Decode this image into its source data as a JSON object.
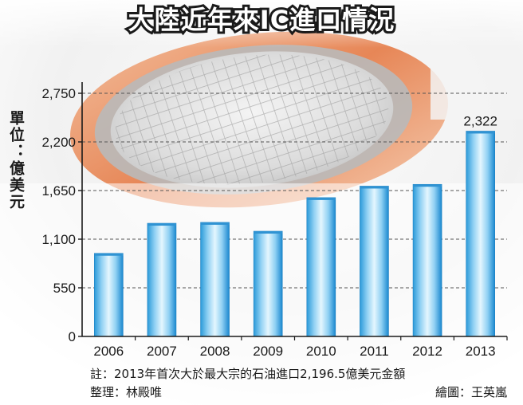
{
  "chart_data": {
    "type": "bar",
    "title": "大陸近年來IC進口情況",
    "ylabel": "單位：億美元",
    "xlabel": "",
    "categories": [
      "2006",
      "2007",
      "2008",
      "2009",
      "2010",
      "2011",
      "2012",
      "2013"
    ],
    "values": [
      940,
      1280,
      1290,
      1190,
      1570,
      1700,
      1720,
      2322
    ],
    "data_labels": [
      {
        "category": "2013",
        "text": "2,322"
      }
    ],
    "yticks": [
      0,
      550,
      1100,
      1650,
      2200,
      2750
    ],
    "ytick_labels": [
      "0",
      "550",
      "1,100",
      "1,650",
      "2,200",
      "2,750"
    ],
    "ylim": [
      0,
      2750
    ],
    "grid": "horizontal dashed",
    "legend": "none",
    "colors": {
      "bar_light": "#dff3fd",
      "bar_mid": "#7cc8f0",
      "bar_dark": "#1b8fd6",
      "title_fill": "#ffffff",
      "title_stroke": "#222222"
    }
  },
  "notes": {
    "note": "註：2013年首次大於最大宗的石油進口2,196.5億美元金額",
    "compiled_by": "整理：林殿唯",
    "drawn_by": "繪圖：王英嵐"
  }
}
